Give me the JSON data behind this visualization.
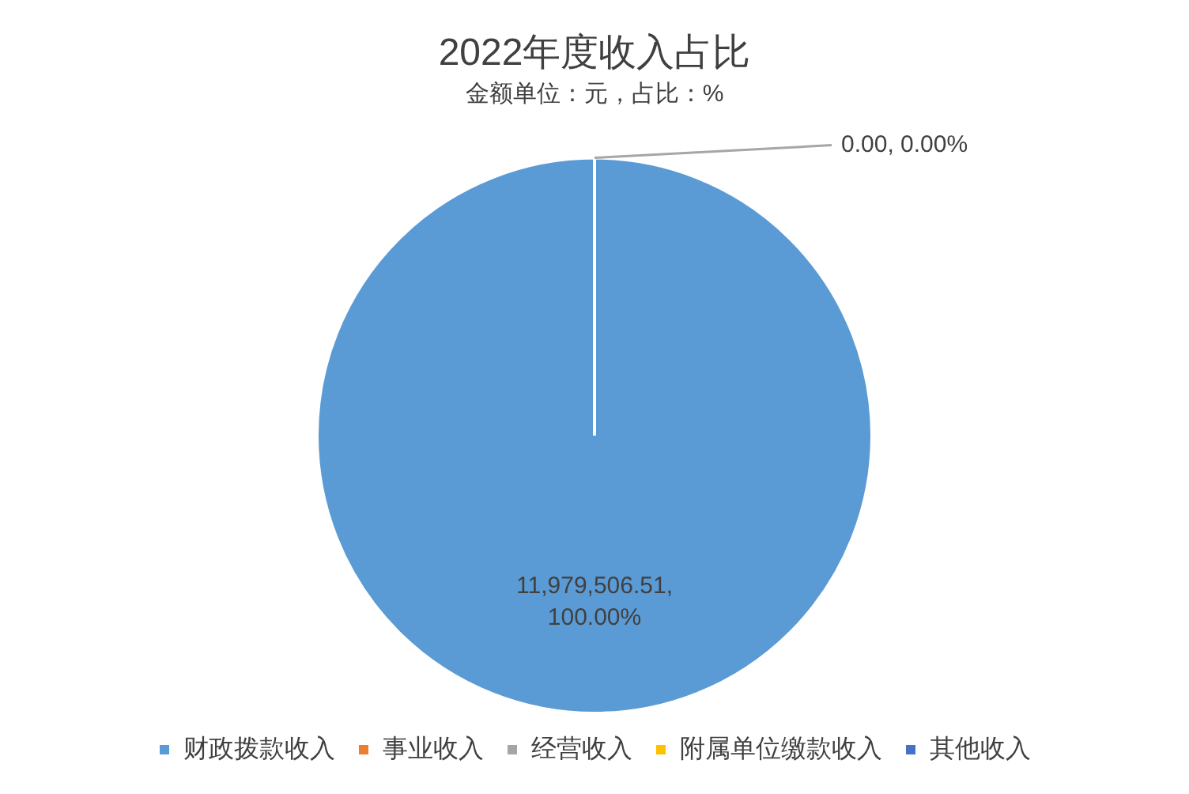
{
  "chart_data": {
    "type": "pie",
    "title": "2022年度收入占比",
    "subtitle": "金额单位：元，占比：%",
    "categories": [
      "财政拨款收入",
      "事业收入",
      "经营收入",
      "附属单位缴款收入",
      "其他收入"
    ],
    "values": [
      11979506.51,
      0,
      0,
      0,
      0
    ],
    "colors": [
      "#5b9bd5",
      "#ed7d31",
      "#a5a5a5",
      "#ffc000",
      "#4472c4"
    ],
    "value_labels": [
      "11,979,506.51, 100.00%",
      "0.00, 0.00%",
      null,
      null,
      null
    ],
    "legend": "bottom"
  }
}
